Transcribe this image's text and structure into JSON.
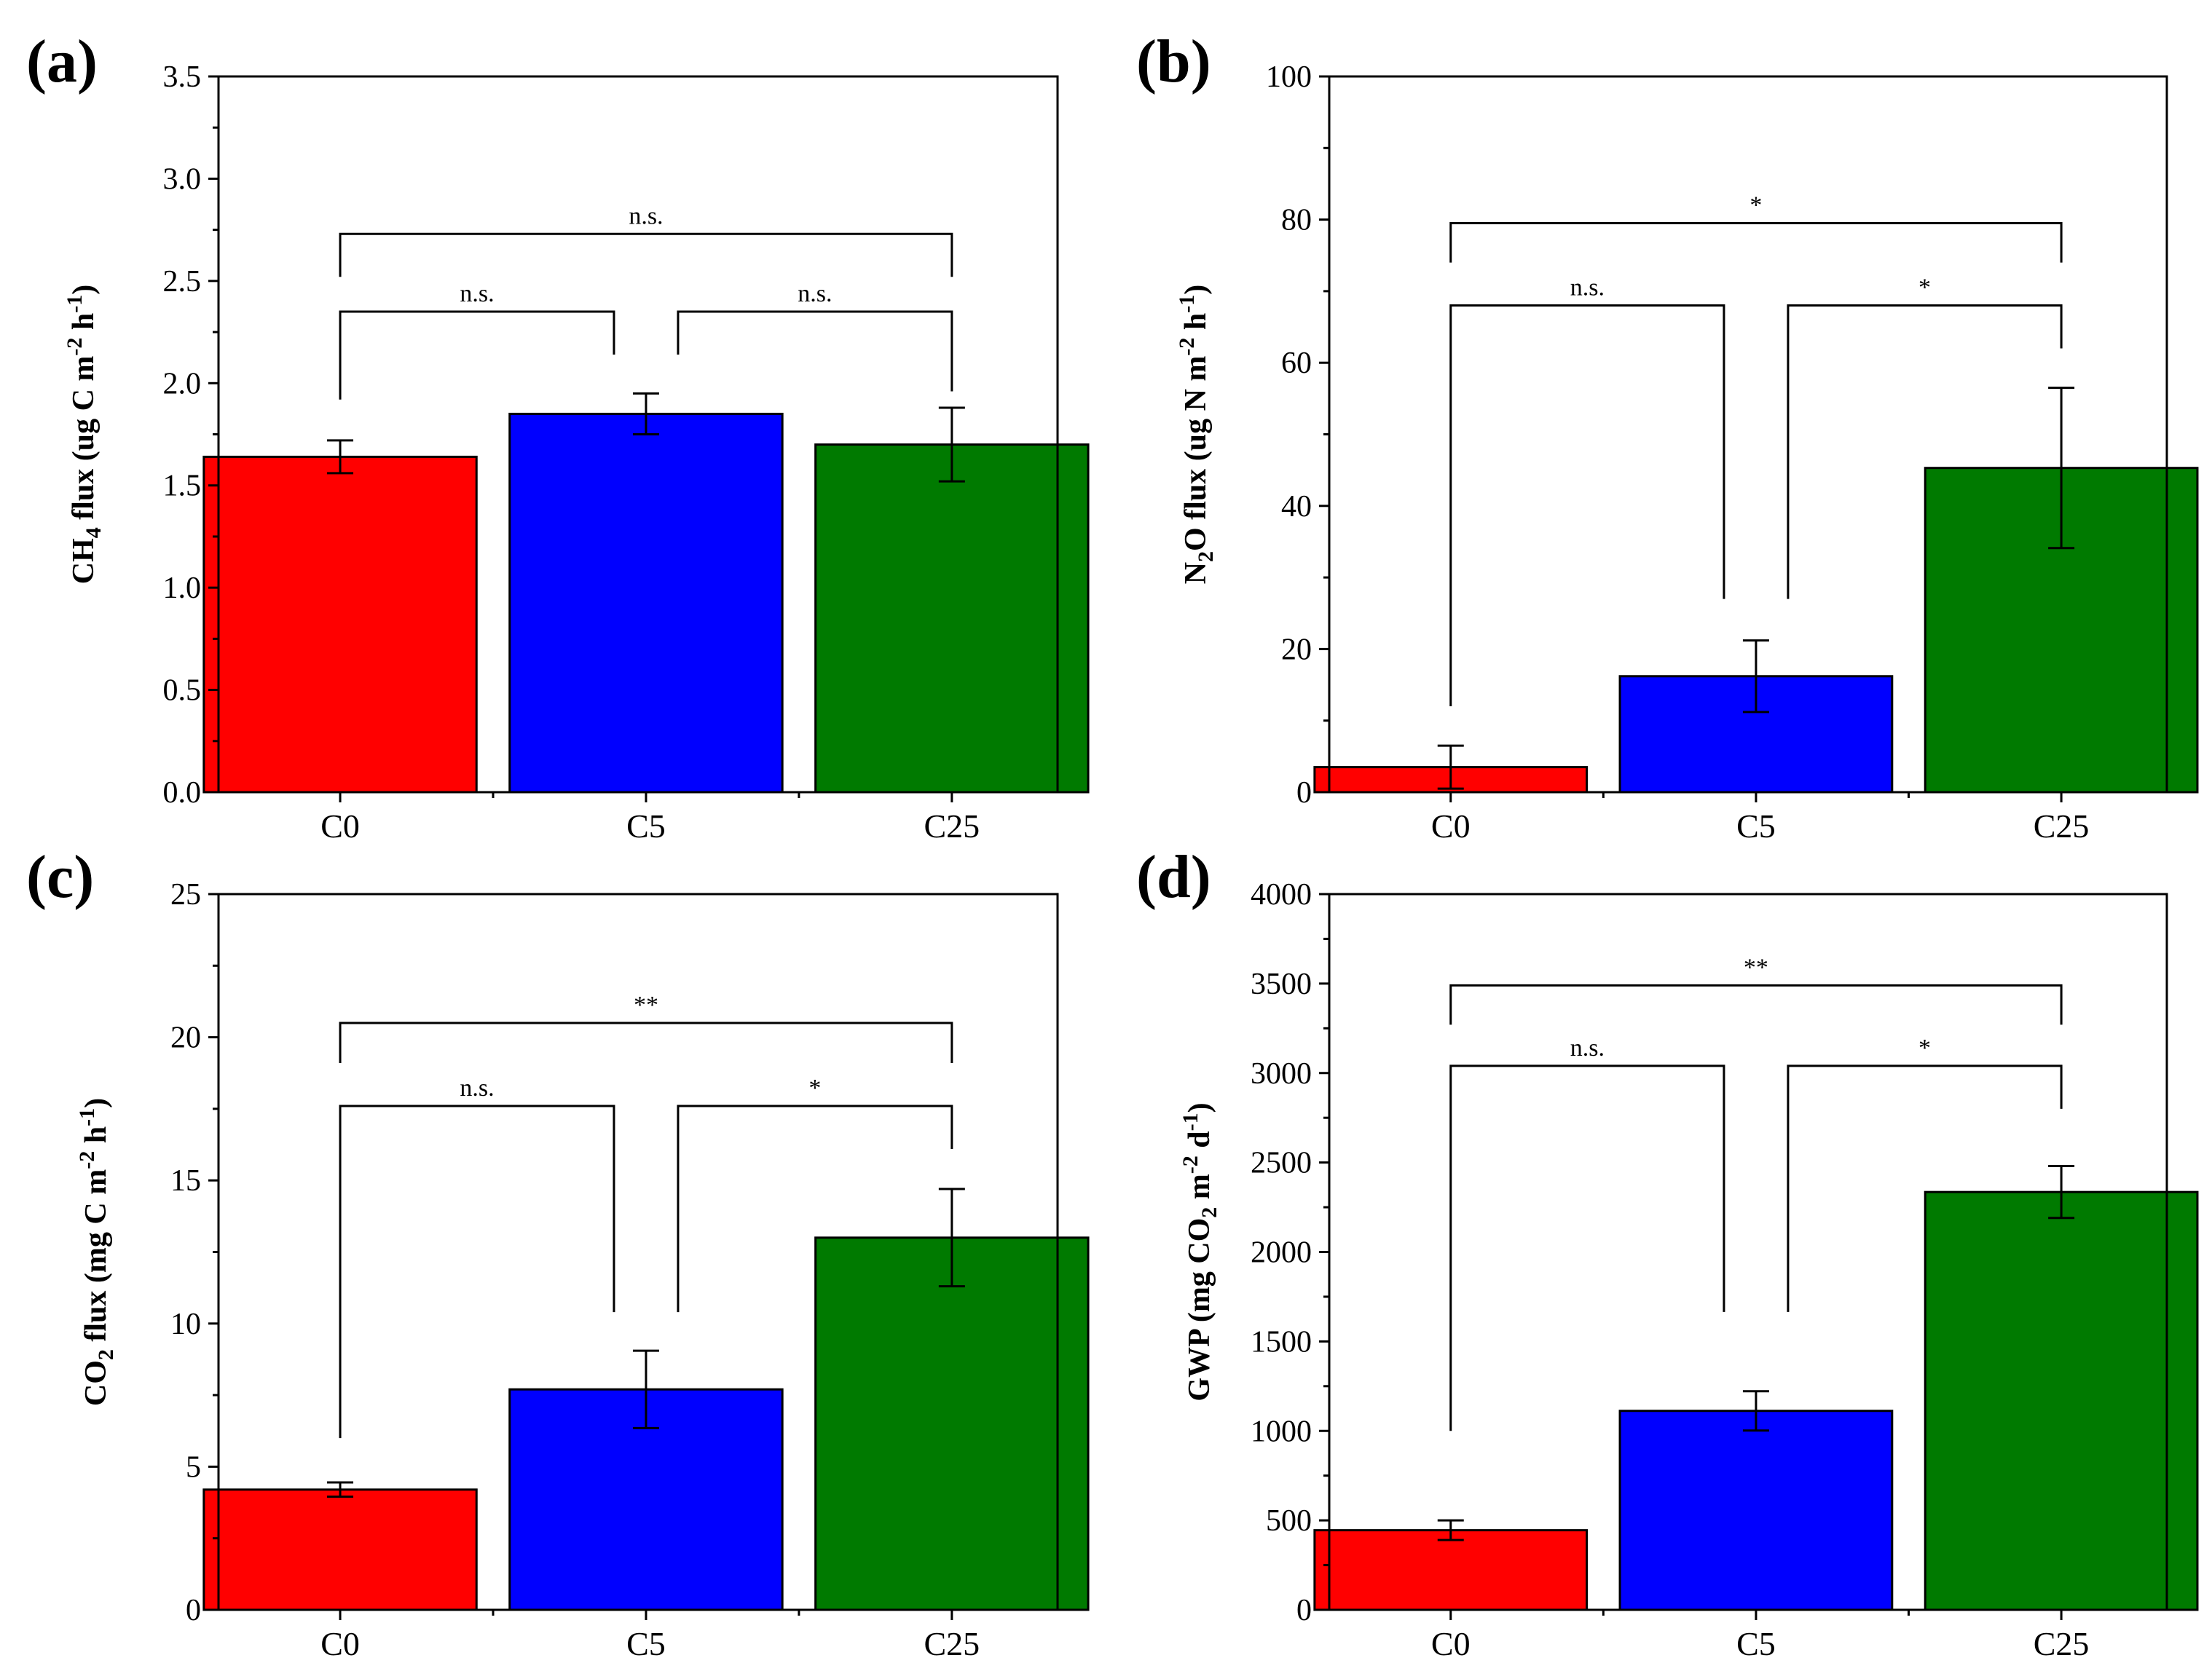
{
  "chart_data": [
    {
      "type": "bar",
      "panel": "(a)",
      "ylabel": "CH4 flux (ug C m-2 h-1)",
      "ylabel_parts": {
        "pre": "CH",
        "sub": "4",
        "post": " flux (ug C m",
        "sup1": "-2",
        "mid": " h",
        "sup2": "-1",
        "end": ")"
      },
      "categories": [
        "C0",
        "C5",
        "C25"
      ],
      "values": [
        1.64,
        1.85,
        1.7
      ],
      "errors": [
        0.08,
        0.1,
        0.18
      ],
      "colors": [
        "#ff0000",
        "#0000ff",
        "#007a00"
      ],
      "ylim": [
        0,
        3.5
      ],
      "yticks": [
        "0.0",
        "0.5",
        "1.0",
        "1.5",
        "2.0",
        "2.5",
        "3.0",
        "3.5"
      ],
      "significance": [
        {
          "from": 0,
          "to": 1,
          "label": "n.s.",
          "level": 2.35,
          "drop_from": 1.92,
          "drop_to": 2.14
        },
        {
          "from": 1,
          "to": 2,
          "label": "n.s.",
          "level": 2.35,
          "drop_from": 2.14,
          "drop_to": 1.96
        },
        {
          "from": 0,
          "to": 2,
          "label": "n.s.",
          "level": 2.73,
          "drop_from": 2.52,
          "drop_to": 2.52
        }
      ]
    },
    {
      "type": "bar",
      "panel": "(b)",
      "ylabel": "N2O flux (ug N m-2 h-1)",
      "ylabel_parts": {
        "pre": "N",
        "sub": "2",
        "post": "O flux (ug N m",
        "sup1": "-2",
        "mid": " h",
        "sup2": "-1",
        "end": ")"
      },
      "categories": [
        "C0",
        "C5",
        "C25"
      ],
      "values": [
        3.5,
        16.2,
        45.3
      ],
      "errors": [
        3.0,
        5.0,
        11.2
      ],
      "colors": [
        "#ff0000",
        "#0000ff",
        "#007a00"
      ],
      "ylim": [
        0,
        100
      ],
      "yticks": [
        "0",
        "20",
        "40",
        "60",
        "80",
        "100"
      ],
      "significance": [
        {
          "from": 0,
          "to": 1,
          "label": "n.s.",
          "level": 68,
          "drop_from": 12,
          "drop_to": 27
        },
        {
          "from": 1,
          "to": 2,
          "label": "*",
          "level": 68,
          "drop_from": 27,
          "drop_to": 62
        },
        {
          "from": 0,
          "to": 2,
          "label": "*",
          "level": 79.5,
          "drop_from": 74,
          "drop_to": 74
        }
      ]
    },
    {
      "type": "bar",
      "panel": "(c)",
      "ylabel": "CO2 flux (mg C m-2 h-1)",
      "ylabel_parts": {
        "pre": "CO",
        "sub": "2",
        "post": " flux (mg C m",
        "sup1": "-2",
        "mid": " h",
        "sup2": "-1",
        "end": ")"
      },
      "categories": [
        "C0",
        "C5",
        "C25"
      ],
      "values": [
        4.2,
        7.7,
        13.0
      ],
      "errors": [
        0.25,
        1.35,
        1.7
      ],
      "colors": [
        "#ff0000",
        "#0000ff",
        "#007a00"
      ],
      "ylim": [
        0,
        25
      ],
      "yticks": [
        "0",
        "5",
        "10",
        "15",
        "20",
        "25"
      ],
      "significance": [
        {
          "from": 0,
          "to": 1,
          "label": "n.s.",
          "level": 17.6,
          "drop_from": 6.0,
          "drop_to": 10.4
        },
        {
          "from": 1,
          "to": 2,
          "label": "*",
          "level": 17.6,
          "drop_from": 10.4,
          "drop_to": 16.1
        },
        {
          "from": 0,
          "to": 2,
          "label": "**",
          "level": 20.5,
          "drop_from": 19.1,
          "drop_to": 19.1
        }
      ]
    },
    {
      "type": "bar",
      "panel": "(d)",
      "ylabel": "GWP (mg CO2 m-2 d-1)",
      "ylabel_parts": {
        "pre": "GWP (mg CO",
        "sub": "2",
        "post": " m",
        "sup1": "-2",
        "mid": " d",
        "sup2": "-1",
        "end": ")"
      },
      "categories": [
        "C0",
        "C5",
        "C25"
      ],
      "values": [
        445,
        1112,
        2335
      ],
      "errors": [
        55,
        110,
        145
      ],
      "colors": [
        "#ff0000",
        "#0000ff",
        "#007a00"
      ],
      "ylim": [
        0,
        4000
      ],
      "yticks": [
        "0",
        "500",
        "1000",
        "1500",
        "2000",
        "2500",
        "3000",
        "3500",
        "4000"
      ],
      "significance": [
        {
          "from": 0,
          "to": 1,
          "label": "n.s.",
          "level": 3040,
          "drop_from": 1000,
          "drop_to": 1665
        },
        {
          "from": 1,
          "to": 2,
          "label": "*",
          "level": 3040,
          "drop_from": 1665,
          "drop_to": 2800
        },
        {
          "from": 0,
          "to": 2,
          "label": "**",
          "level": 3490,
          "drop_from": 3270,
          "drop_to": 3270
        }
      ]
    }
  ]
}
